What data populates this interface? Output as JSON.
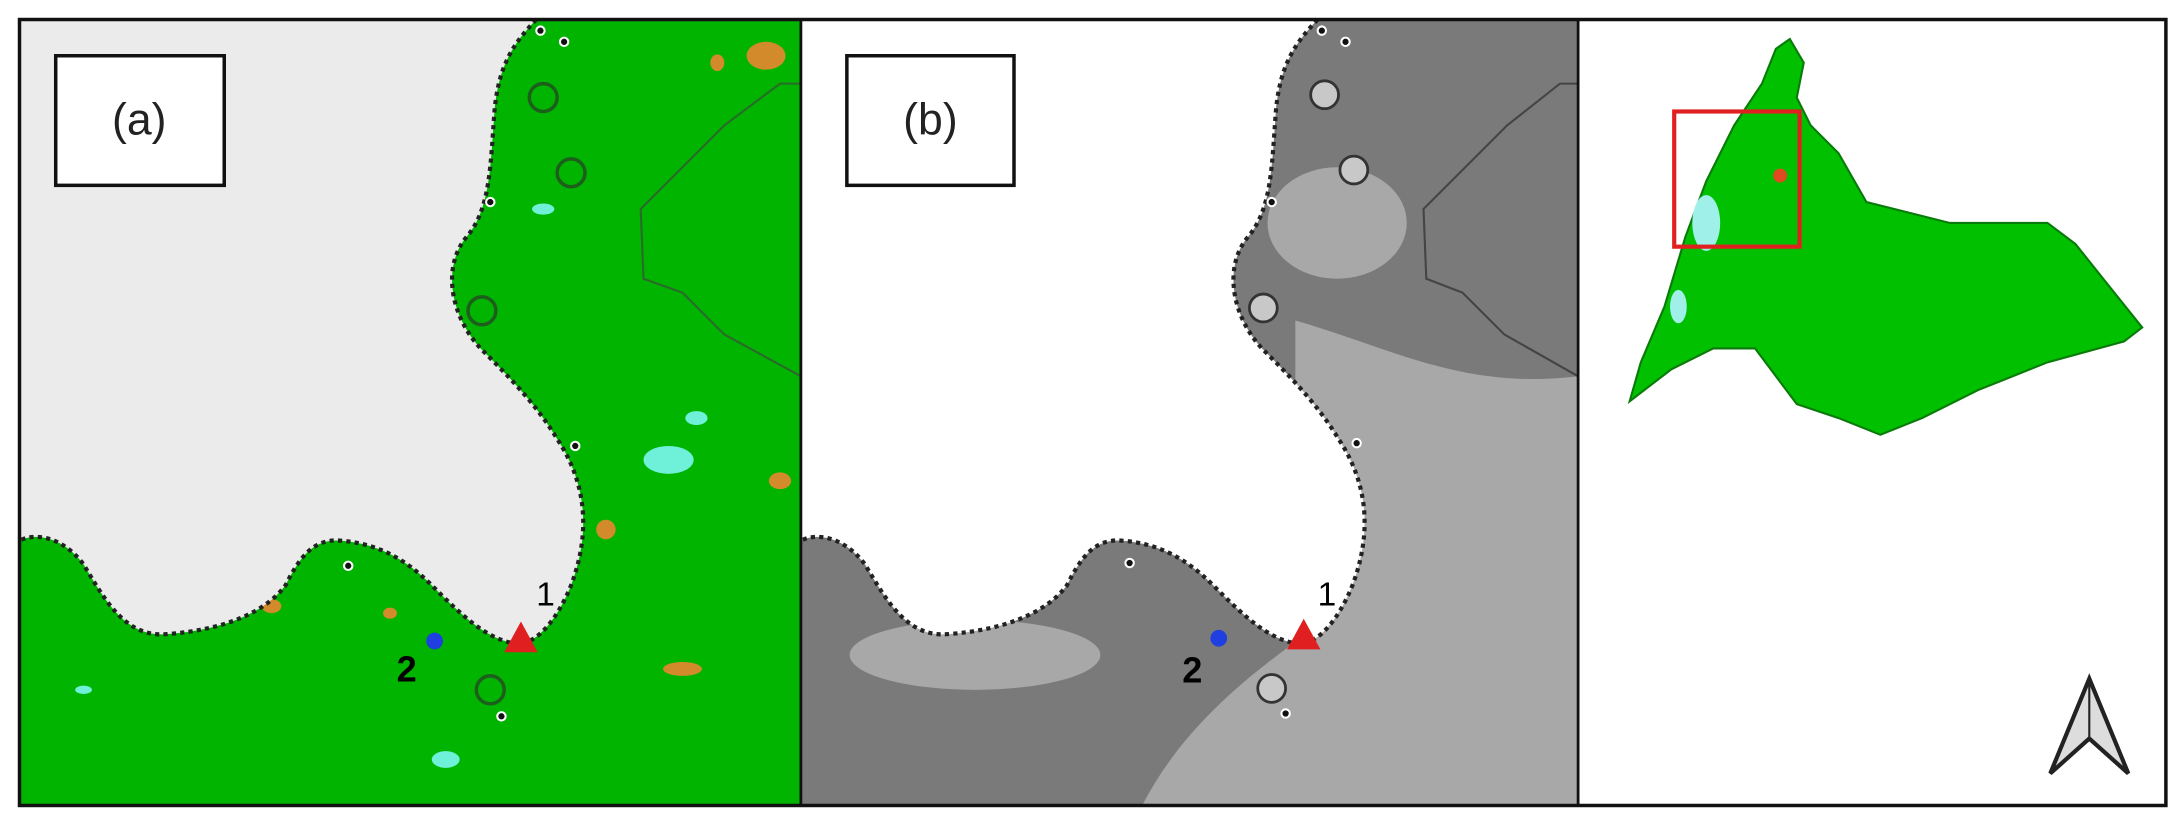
{
  "panels": [
    {
      "label": "(a)",
      "points": [
        "1",
        "2"
      ]
    },
    {
      "label": "(b)",
      "points": [
        "1",
        "2"
      ]
    }
  ]
}
